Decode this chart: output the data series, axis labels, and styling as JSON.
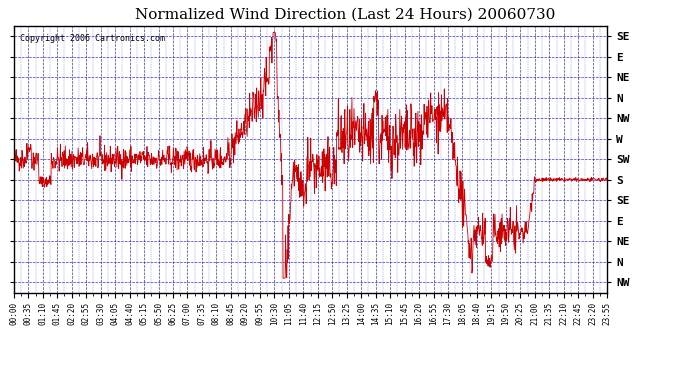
{
  "title": "Normalized Wind Direction (Last 24 Hours) 20060730",
  "copyright": "Copyright 2006 Cartronics.com",
  "bg_color": "#ffffff",
  "plot_bg_color": "#ffffff",
  "line_color": "#cc0000",
  "grid_color": "#0000cc",
  "tick_color": "#000000",
  "ytick_labels": [
    "SE",
    "E",
    "NE",
    "N",
    "NW",
    "W",
    "SW",
    "S",
    "SE",
    "E",
    "NE",
    "N",
    "NW"
  ],
  "ytick_values": [
    12,
    11,
    10,
    9,
    8,
    7,
    6,
    5,
    4,
    3,
    2,
    1,
    0
  ],
  "ylim": [
    -0.5,
    12.5
  ],
  "xtick_labels": [
    "00:00",
    "00:35",
    "01:10",
    "01:45",
    "02:20",
    "02:55",
    "03:30",
    "04:05",
    "04:40",
    "05:15",
    "05:50",
    "06:25",
    "07:00",
    "07:35",
    "08:10",
    "08:45",
    "09:20",
    "09:55",
    "10:30",
    "11:05",
    "11:40",
    "12:15",
    "12:50",
    "13:25",
    "14:00",
    "14:35",
    "15:10",
    "15:45",
    "16:20",
    "16:55",
    "17:30",
    "18:05",
    "18:40",
    "19:15",
    "19:50",
    "20:25",
    "21:00",
    "21:35",
    "22:10",
    "22:45",
    "23:20",
    "23:55"
  ],
  "figsize": [
    6.9,
    3.75
  ],
  "dpi": 100
}
